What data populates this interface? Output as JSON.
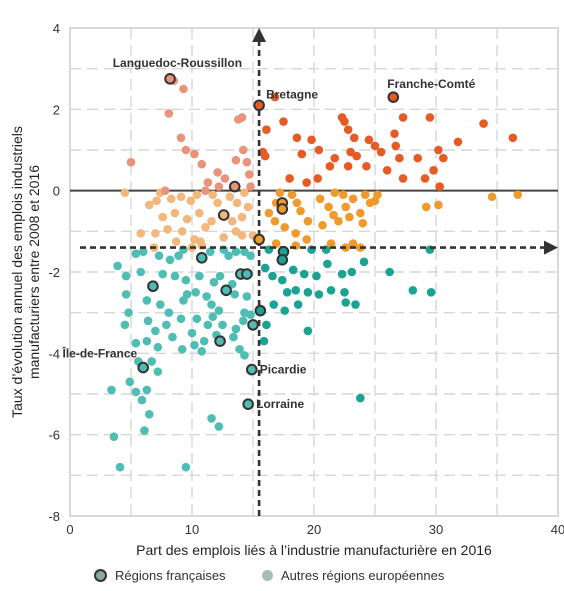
{
  "chart_data": {
    "type": "scatter",
    "title": "",
    "xlabel": "Part des emplois liés à l’industrie manufacturière en 2016",
    "ylabel_line1": "Taux d’évolution annuel des emplois industriels",
    "ylabel_line2": "manufacturiers entre 2008 et 2016",
    "xlim": [
      0,
      40
    ],
    "ylim": [
      -8,
      4
    ],
    "x_ticks": [
      0,
      10,
      20,
      30,
      40
    ],
    "y_ticks": [
      4,
      2,
      0,
      -2,
      -4,
      -6,
      -8
    ],
    "x_reference": 15.5,
    "y_reference": -1.4,
    "grid": true,
    "quadrant_colors": {
      "top_left": "#e8937a",
      "top_right": "#e65a25",
      "middle_left": "#f2b77a",
      "middle_right": "#f09a2e",
      "bottom_left": "#4fbdb3",
      "bottom_right": "#1aa393"
    },
    "french_regions": [
      {
        "name": "Languedoc-Roussillon",
        "x": 8.2,
        "y": 2.75,
        "label": true
      },
      {
        "name": "Bretagne",
        "x": 15.5,
        "y": 2.1,
        "label": true
      },
      {
        "name": "Franche-Comté",
        "x": 26.5,
        "y": 2.3,
        "label": true
      },
      {
        "name": "Île-de-France",
        "x": 6.0,
        "y": -4.35,
        "label": true
      },
      {
        "name": "Picardie",
        "x": 14.9,
        "y": -4.4,
        "label": true
      },
      {
        "name": "Lorraine",
        "x": 14.6,
        "y": -5.25,
        "label": true
      },
      {
        "name": "",
        "x": 13.5,
        "y": 0.1,
        "label": false
      },
      {
        "name": "",
        "x": 12.6,
        "y": -0.6,
        "label": false
      },
      {
        "name": "",
        "x": 17.4,
        "y": -0.3,
        "label": false
      },
      {
        "name": "",
        "x": 17.4,
        "y": -0.45,
        "label": false
      },
      {
        "name": "",
        "x": 15.5,
        "y": -1.2,
        "label": false
      },
      {
        "name": "",
        "x": 17.5,
        "y": -1.5,
        "label": false
      },
      {
        "name": "",
        "x": 17.4,
        "y": -1.7,
        "label": false
      },
      {
        "name": "",
        "x": 10.8,
        "y": -1.65,
        "label": false
      },
      {
        "name": "",
        "x": 14.0,
        "y": -2.05,
        "label": false
      },
      {
        "name": "",
        "x": 14.5,
        "y": -2.05,
        "label": false
      },
      {
        "name": "",
        "x": 6.8,
        "y": -2.35,
        "label": false
      },
      {
        "name": "",
        "x": 12.8,
        "y": -2.45,
        "label": false
      },
      {
        "name": "",
        "x": 15.6,
        "y": -2.95,
        "label": false
      },
      {
        "name": "",
        "x": 15.0,
        "y": -3.3,
        "label": false
      },
      {
        "name": "",
        "x": 12.3,
        "y": -3.7,
        "label": false
      }
    ],
    "european_regions": [
      [
        8.5,
        2.7
      ],
      [
        9.3,
        2.5
      ],
      [
        8.1,
        1.9
      ],
      [
        9.1,
        1.3
      ],
      [
        9.5,
        1.0
      ],
      [
        10.2,
        0.9
      ],
      [
        5.0,
        0.7
      ],
      [
        10.8,
        0.65
      ],
      [
        12.1,
        0.45
      ],
      [
        12.7,
        0.3
      ],
      [
        11.3,
        0.2
      ],
      [
        12.2,
        0.1
      ],
      [
        14.1,
        1.8
      ],
      [
        13.8,
        1.75
      ],
      [
        14.2,
        1.0
      ],
      [
        14.5,
        0.7
      ],
      [
        14.7,
        0.4
      ],
      [
        13.6,
        0.75
      ],
      [
        14.8,
        0.1
      ],
      [
        16.8,
        2.3
      ],
      [
        17.5,
        1.7
      ],
      [
        16.1,
        1.5
      ],
      [
        18.6,
        1.3
      ],
      [
        19.8,
        1.25
      ],
      [
        22.3,
        1.8
      ],
      [
        22.5,
        1.7
      ],
      [
        22.8,
        1.5
      ],
      [
        23.3,
        1.3
      ],
      [
        24.5,
        1.25
      ],
      [
        25.0,
        1.1
      ],
      [
        26.6,
        1.4
      ],
      [
        26.7,
        1.1
      ],
      [
        27.3,
        1.8
      ],
      [
        29.5,
        1.8
      ],
      [
        30.2,
        1.0
      ],
      [
        31.8,
        1.2
      ],
      [
        33.9,
        1.65
      ],
      [
        36.3,
        1.3
      ],
      [
        15.8,
        0.95
      ],
      [
        16.0,
        0.85
      ],
      [
        19.0,
        0.9
      ],
      [
        20.4,
        1.0
      ],
      [
        21.7,
        0.8
      ],
      [
        23.0,
        0.95
      ],
      [
        23.5,
        0.85
      ],
      [
        25.5,
        0.95
      ],
      [
        27.0,
        0.8
      ],
      [
        28.5,
        0.8
      ],
      [
        29.8,
        0.5
      ],
      [
        30.6,
        0.8
      ],
      [
        21.3,
        0.6
      ],
      [
        22.8,
        0.6
      ],
      [
        24.3,
        0.6
      ],
      [
        27.3,
        0.3
      ],
      [
        18.0,
        0.3
      ],
      [
        19.4,
        0.2
      ],
      [
        20.3,
        0.3
      ],
      [
        26.0,
        0.5
      ],
      [
        29.1,
        0.3
      ],
      [
        30.3,
        0.1
      ],
      [
        4.5,
        -0.05
      ],
      [
        6.5,
        -0.35
      ],
      [
        7.1,
        -0.25
      ],
      [
        7.4,
        -0.05
      ],
      [
        7.8,
        0.0
      ],
      [
        8.3,
        -0.2
      ],
      [
        9.1,
        -0.15
      ],
      [
        9.9,
        -0.25
      ],
      [
        10.4,
        -0.1
      ],
      [
        11.1,
        0.0
      ],
      [
        11.7,
        -0.1
      ],
      [
        12.1,
        -0.3
      ],
      [
        13.1,
        -0.15
      ],
      [
        13.7,
        -0.3
      ],
      [
        14.3,
        -0.05
      ],
      [
        14.6,
        -0.4
      ],
      [
        7.6,
        -0.65
      ],
      [
        8.6,
        -0.55
      ],
      [
        9.6,
        -0.7
      ],
      [
        10.6,
        -0.55
      ],
      [
        11.6,
        -0.75
      ],
      [
        13.3,
        -0.75
      ],
      [
        14.1,
        -0.65
      ],
      [
        5.8,
        -1.05
      ],
      [
        7.0,
        -1.05
      ],
      [
        8.0,
        -0.95
      ],
      [
        9.2,
        -1.0
      ],
      [
        10.2,
        -1.2
      ],
      [
        11.1,
        -0.9
      ],
      [
        12.6,
        -1.15
      ],
      [
        13.6,
        -1.0
      ],
      [
        14.1,
        -1.1
      ],
      [
        15.0,
        -1.1
      ],
      [
        8.7,
        -1.25
      ],
      [
        10.7,
        -1.25
      ],
      [
        17.2,
        -0.05
      ],
      [
        18.2,
        -0.1
      ],
      [
        18.6,
        -0.3
      ],
      [
        18.9,
        -0.5
      ],
      [
        19.5,
        -0.75
      ],
      [
        20.5,
        -0.2
      ],
      [
        21.2,
        -0.4
      ],
      [
        21.6,
        -0.6
      ],
      [
        22.4,
        -0.1
      ],
      [
        22.6,
        -0.4
      ],
      [
        23.2,
        -0.2
      ],
      [
        23.8,
        -0.55
      ],
      [
        24.2,
        -0.1
      ],
      [
        24.6,
        -0.3
      ],
      [
        25.0,
        -0.25
      ],
      [
        25.2,
        -0.1
      ],
      [
        24.0,
        -0.8
      ],
      [
        22.0,
        -0.75
      ],
      [
        20.7,
        -0.85
      ],
      [
        16.8,
        -0.75
      ],
      [
        17.6,
        -0.9
      ],
      [
        18.5,
        -1.05
      ],
      [
        19.4,
        -1.2
      ],
      [
        16.3,
        -0.55
      ],
      [
        16.9,
        -0.3
      ],
      [
        21.7,
        -0.05
      ],
      [
        22.9,
        -0.65
      ],
      [
        34.6,
        -0.15
      ],
      [
        36.7,
        -0.1
      ],
      [
        30.2,
        -0.35
      ],
      [
        29.2,
        -0.4
      ],
      [
        3.9,
        -1.85
      ],
      [
        4.6,
        -2.1
      ],
      [
        5.4,
        -1.55
      ],
      [
        6.0,
        -1.5
      ],
      [
        6.9,
        -1.4
      ],
      [
        7.3,
        -1.6
      ],
      [
        8.2,
        -1.7
      ],
      [
        8.9,
        -1.6
      ],
      [
        9.3,
        -1.45
      ],
      [
        10.0,
        -1.4
      ],
      [
        10.8,
        -1.35
      ],
      [
        11.5,
        -1.5
      ],
      [
        12.6,
        -1.45
      ],
      [
        13.0,
        -1.6
      ],
      [
        13.6,
        -1.5
      ],
      [
        14.3,
        -1.5
      ],
      [
        14.8,
        -1.6
      ],
      [
        5.8,
        -2.0
      ],
      [
        7.6,
        -2.05
      ],
      [
        8.6,
        -2.1
      ],
      [
        9.5,
        -2.2
      ],
      [
        10.6,
        -2.1
      ],
      [
        11.8,
        -2.25
      ],
      [
        12.3,
        -2.1
      ],
      [
        13.3,
        -2.3
      ],
      [
        14.5,
        -2.6
      ],
      [
        4.6,
        -2.55
      ],
      [
        6.3,
        -2.7
      ],
      [
        7.4,
        -2.8
      ],
      [
        8.1,
        -3.0
      ],
      [
        9.3,
        -2.7
      ],
      [
        9.6,
        -2.55
      ],
      [
        10.3,
        -2.5
      ],
      [
        11.2,
        -2.6
      ],
      [
        11.6,
        -2.8
      ],
      [
        12.2,
        -2.95
      ],
      [
        13.5,
        -2.55
      ],
      [
        14.3,
        -3.0
      ],
      [
        4.8,
        -3.0
      ],
      [
        6.4,
        -3.2
      ],
      [
        7.0,
        -3.45
      ],
      [
        7.9,
        -3.3
      ],
      [
        9.1,
        -3.15
      ],
      [
        10.0,
        -3.5
      ],
      [
        10.4,
        -3.15
      ],
      [
        11.3,
        -3.3
      ],
      [
        11.7,
        -3.1
      ],
      [
        12.5,
        -3.3
      ],
      [
        13.6,
        -3.4
      ],
      [
        14.2,
        -3.2
      ],
      [
        4.5,
        -3.3
      ],
      [
        5.4,
        -3.75
      ],
      [
        6.3,
        -3.7
      ],
      [
        7.2,
        -3.85
      ],
      [
        8.4,
        -3.6
      ],
      [
        9.2,
        -3.9
      ],
      [
        10.2,
        -3.8
      ],
      [
        11.0,
        -3.7
      ],
      [
        12.0,
        -3.55
      ],
      [
        13.4,
        -3.6
      ],
      [
        13.9,
        -3.9
      ],
      [
        14.3,
        -4.05
      ],
      [
        5.6,
        -4.2
      ],
      [
        6.7,
        -4.2
      ],
      [
        4.9,
        -4.7
      ],
      [
        6.3,
        -4.9
      ],
      [
        5.4,
        -4.95
      ],
      [
        3.4,
        -4.9
      ],
      [
        5.9,
        -5.15
      ],
      [
        6.5,
        -5.5
      ],
      [
        6.1,
        -5.9
      ],
      [
        11.6,
        -5.6
      ],
      [
        12.2,
        -5.8
      ],
      [
        3.6,
        -6.05
      ],
      [
        9.5,
        -6.8
      ],
      [
        4.1,
        -6.8
      ],
      [
        7.2,
        -4.45
      ],
      [
        10.8,
        -3.95
      ],
      [
        14.8,
        -3.05
      ],
      [
        16.3,
        -1.45
      ],
      [
        16.9,
        -1.3
      ],
      [
        18.5,
        -1.35
      ],
      [
        19.8,
        -1.45
      ],
      [
        21.0,
        -1.45
      ],
      [
        21.4,
        -1.3
      ],
      [
        22.6,
        -1.4
      ],
      [
        23.2,
        -1.3
      ],
      [
        23.8,
        -1.4
      ],
      [
        16.0,
        -1.9
      ],
      [
        16.6,
        -2.1
      ],
      [
        17.4,
        -2.2
      ],
      [
        18.3,
        -1.95
      ],
      [
        19.2,
        -2.05
      ],
      [
        20.2,
        -2.1
      ],
      [
        21.1,
        -1.8
      ],
      [
        22.3,
        -2.05
      ],
      [
        23.1,
        -2.0
      ],
      [
        24.1,
        -1.75
      ],
      [
        17.8,
        -2.5
      ],
      [
        18.5,
        -2.45
      ],
      [
        19.5,
        -2.5
      ],
      [
        20.4,
        -2.55
      ],
      [
        21.4,
        -2.45
      ],
      [
        22.5,
        -2.5
      ],
      [
        23.4,
        -2.8
      ],
      [
        26.2,
        -2.0
      ],
      [
        28.1,
        -2.45
      ],
      [
        29.6,
        -2.5
      ],
      [
        16.7,
        -2.8
      ],
      [
        17.6,
        -2.95
      ],
      [
        18.7,
        -2.8
      ],
      [
        16.1,
        -3.3
      ],
      [
        19.5,
        -3.45
      ],
      [
        15.9,
        -3.7
      ],
      [
        23.8,
        -5.1
      ],
      [
        29.5,
        -1.45
      ],
      [
        22.6,
        -2.75
      ]
    ]
  },
  "legend": {
    "french_label": "Régions françaises",
    "european_label": "Autres régions européennes"
  }
}
